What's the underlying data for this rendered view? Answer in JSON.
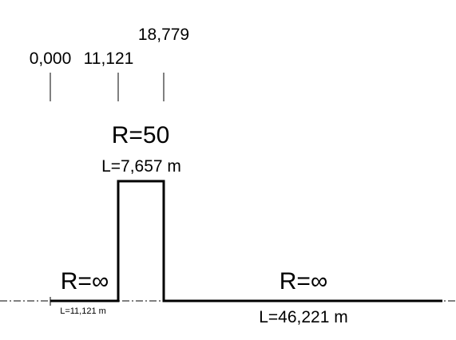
{
  "stations": {
    "s0": "0,000",
    "s1": "11,121",
    "s2": "18,779"
  },
  "segments": [
    {
      "radius_label": "R=∞",
      "length_label": "L=11,121 m",
      "start_km": 0.0,
      "end_km": 11.121,
      "curvature": 0
    },
    {
      "radius_label": "R=50",
      "length_label": "L=7,657 m",
      "start_km": 11.121,
      "end_km": 18.779,
      "curvature": 0.02
    },
    {
      "radius_label": "R=∞",
      "length_label": "L=46,221 m",
      "start_km": 18.779,
      "end_km": 65.0,
      "curvature": 0
    }
  ],
  "colors": {
    "line": "#000000",
    "axis": "#000000"
  }
}
